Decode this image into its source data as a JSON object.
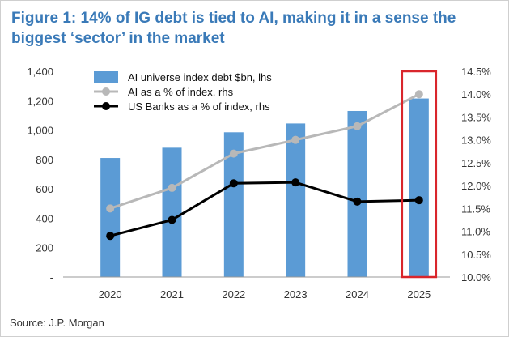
{
  "title": "Figure 1: 14% of IG debt is tied to AI, making it in a sense the biggest ‘sector’ in the market",
  "source": "Source: J.P. Morgan",
  "colors": {
    "title": "#3a7ab8",
    "bar": "#5b9bd5",
    "ai_pct_line": "#b8b8b8",
    "banks_line": "#000000",
    "highlight_box": "#d9262c"
  },
  "chart_data": {
    "type": "bar",
    "categories": [
      "2020",
      "2021",
      "2022",
      "2023",
      "2024",
      "2025"
    ],
    "series": [
      {
        "name": "AI universe index debt $bn, lhs",
        "type": "bar",
        "axis": "left",
        "values": [
          810,
          880,
          985,
          1045,
          1130,
          1215
        ]
      },
      {
        "name": "AI as a % of index, rhs",
        "type": "line",
        "axis": "right",
        "values": [
          11.5,
          11.95,
          12.7,
          13.0,
          13.3,
          14.0
        ]
      },
      {
        "name": "US Banks as a % of index, rhs",
        "type": "line",
        "axis": "right",
        "values": [
          10.9,
          11.25,
          12.05,
          12.07,
          11.65,
          11.68
        ]
      }
    ],
    "ylim_left": [
      0,
      1400
    ],
    "yticks_left": [
      "-",
      "200",
      "400",
      "600",
      "800",
      "1,000",
      "1,200",
      "1,400"
    ],
    "ylim_right": [
      10.0,
      14.5
    ],
    "yticks_right": [
      "10.0%",
      "10.5%",
      "11.0%",
      "11.5%",
      "12.0%",
      "12.5%",
      "13.0%",
      "13.5%",
      "14.0%",
      "14.5%"
    ],
    "legend_position": "top-left",
    "highlighted_category": "2025",
    "grid": false
  }
}
